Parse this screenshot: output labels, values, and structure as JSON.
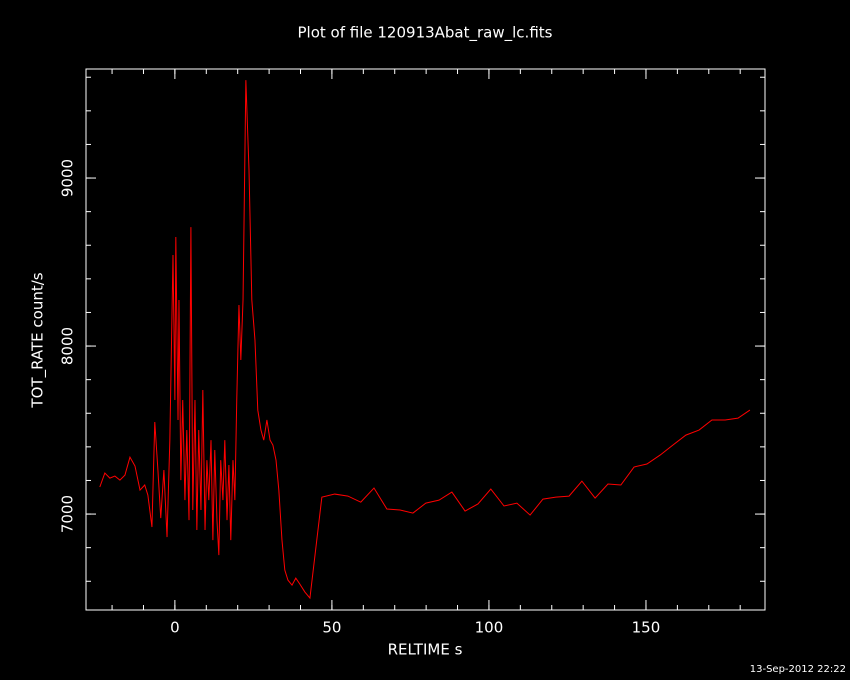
{
  "chart_data": {
    "type": "line",
    "title": "Plot of file 120913Abat_raw_lc.fits",
    "x_label": "RELTIME  s",
    "y_label": "TOT_RATE  count/s",
    "footer": "13-Sep-2012 22:22",
    "color": "#ff0000",
    "xlim": [
      -28.3,
      187.9
    ],
    "ylim": [
      6429,
      9649
    ],
    "xticks": [
      0,
      50,
      100,
      150
    ],
    "yticks": [
      7000,
      8000,
      9000
    ],
    "x": [
      -23.9,
      -22.3,
      -20.7,
      -19.1,
      -17.5,
      -15.9,
      -14.3,
      -12.7,
      -11.1,
      -9.6,
      -8.6,
      -7.3,
      -6.4,
      -5.4,
      -4.5,
      -3.5,
      -2.5,
      -1.6,
      -0.6,
      0,
      0.3,
      1.0,
      1.3,
      1.9,
      2.5,
      3.2,
      3.8,
      4.5,
      5.1,
      5.7,
      6.4,
      7.0,
      7.6,
      8.3,
      8.9,
      9.6,
      10.2,
      10.8,
      11.5,
      12.1,
      12.7,
      13.4,
      14.0,
      14.6,
      15.3,
      15.9,
      16.6,
      17.2,
      17.8,
      18.5,
      19.1,
      19.7,
      20.4,
      21.0,
      21.7,
      22.6,
      23.6,
      24.5,
      25.5,
      26.4,
      27.4,
      28.3,
      29.3,
      30.3,
      31.2,
      32.2,
      33.1,
      34.1,
      35.0,
      36.0,
      37.3,
      38.5,
      39.8,
      41.4,
      43.0,
      46.8,
      50.9,
      55.1,
      59.2,
      63.4,
      67.5,
      71.7,
      75.8,
      79.9,
      84.1,
      88.2,
      92.4,
      96.5,
      100.6,
      104.8,
      108.9,
      113.1,
      117.2,
      121.3,
      125.5,
      129.6,
      133.8,
      137.9,
      142.0,
      146.2,
      150.3,
      154.5,
      158.6,
      162.7,
      166.9,
      171.0,
      175.2,
      179.3,
      183.1
    ],
    "values": [
      7161,
      7244,
      7214,
      7226,
      7202,
      7232,
      7339,
      7286,
      7143,
      7173,
      7113,
      6923,
      7548,
      7262,
      6976,
      7262,
      6863,
      7440,
      8542,
      7679,
      8649,
      7560,
      8274,
      7202,
      7679,
      7083,
      7500,
      6964,
      8708,
      7024,
      7679,
      6905,
      7500,
      7024,
      7738,
      6905,
      7321,
      7083,
      7440,
      6845,
      7381,
      6964,
      6756,
      7321,
      7083,
      7440,
      6964,
      7292,
      6845,
      7321,
      7083,
      7679,
      8244,
      7917,
      8274,
      9583,
      9048,
      8274,
      8036,
      7619,
      7500,
      7440,
      7560,
      7440,
      7411,
      7321,
      7143,
      6845,
      6667,
      6607,
      6577,
      6619,
      6583,
      6536,
      6500,
      7101,
      7119,
      7107,
      7071,
      7155,
      7030,
      7024,
      7006,
      7065,
      7083,
      7131,
      7018,
      7060,
      7149,
      7048,
      7065,
      6994,
      7089,
      7101,
      7107,
      7196,
      7095,
      7179,
      7173,
      7280,
      7298,
      7351,
      7411,
      7470,
      7500,
      7560,
      7560,
      7571,
      7619
    ]
  }
}
